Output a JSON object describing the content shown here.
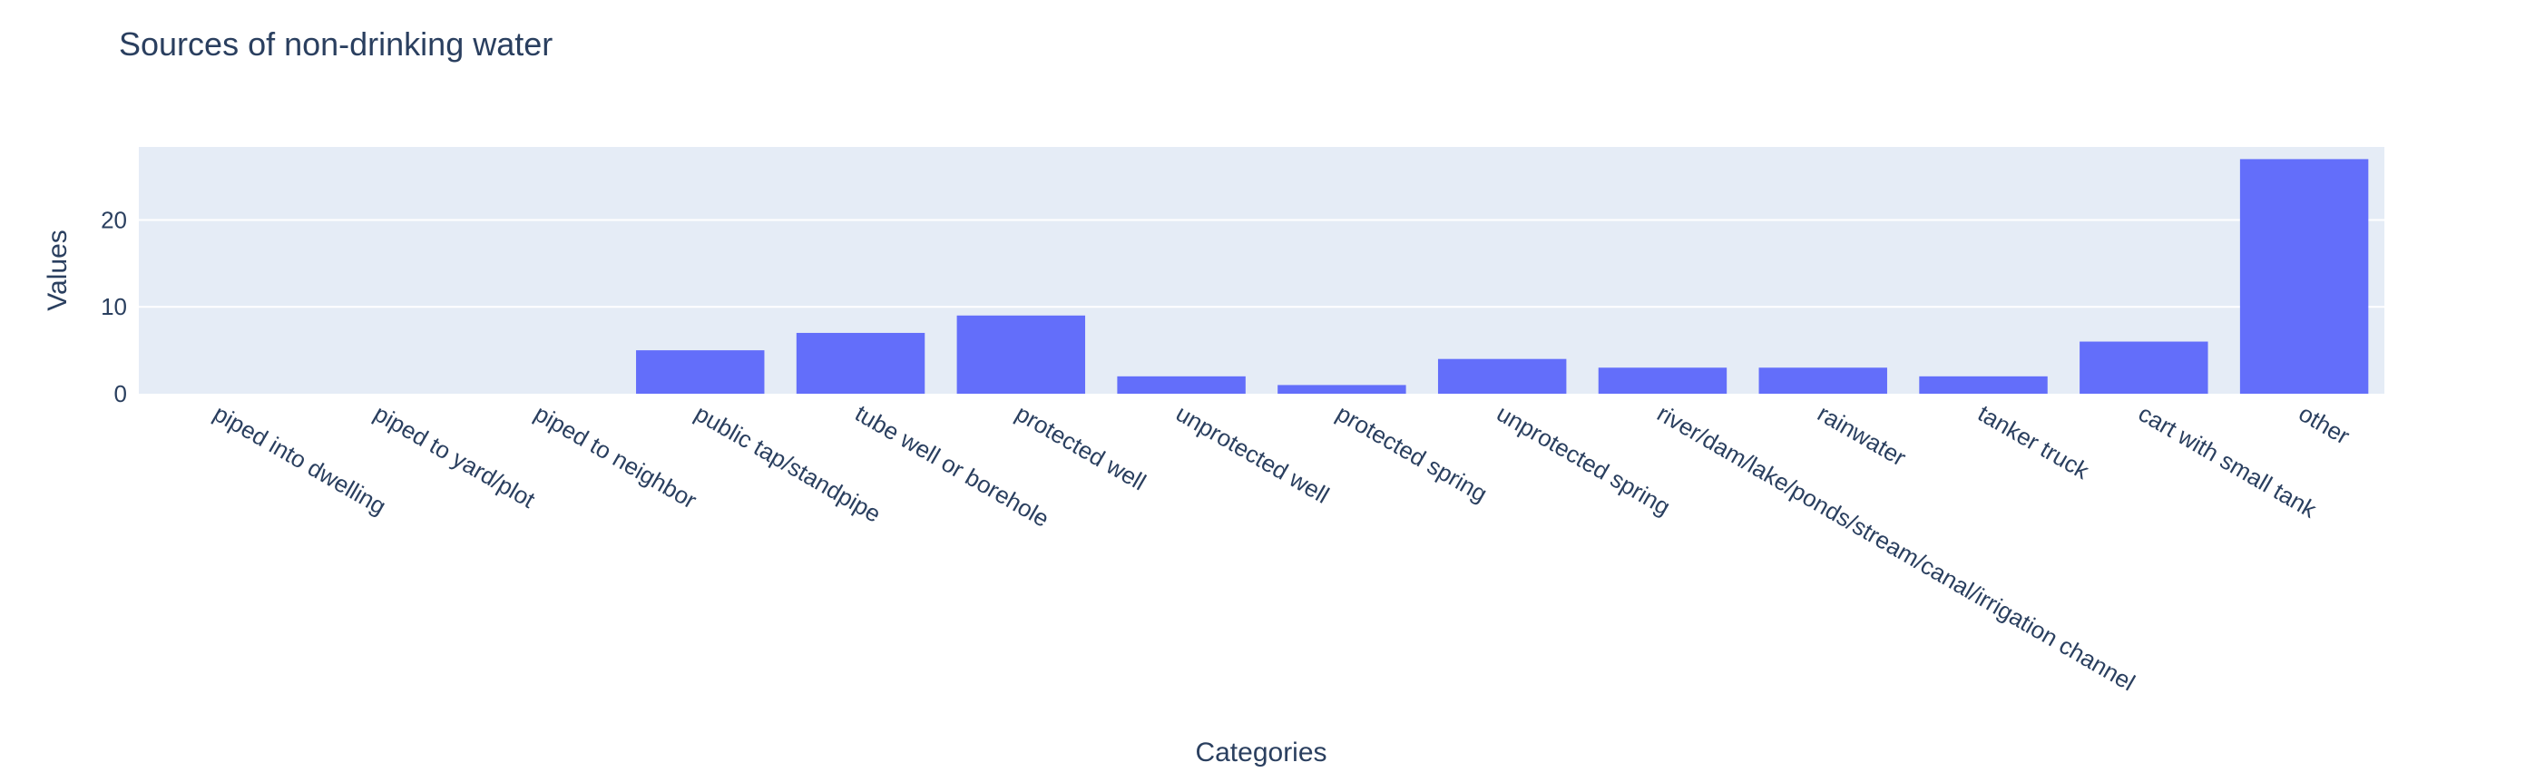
{
  "chart_data": {
    "type": "bar",
    "title": "Sources of non-drinking water",
    "xlabel": "Categories",
    "ylabel": "Values",
    "categories": [
      "piped into dwelling",
      "piped to yard/plot",
      "piped to neighbor",
      "public tap/standpipe",
      "tube well or borehole",
      "protected well",
      "unprotected well",
      "protected spring",
      "unprotected spring",
      "river/dam/lake/ponds/stream/canal/irrigation channel",
      "rainwater",
      "tanker truck",
      "cart with small tank",
      "other"
    ],
    "values": [
      0,
      0,
      0,
      5,
      7,
      9,
      2,
      1,
      4,
      3,
      3,
      2,
      6,
      27
    ],
    "ylim": [
      0,
      28.4
    ],
    "yticks": [
      0,
      10,
      20
    ],
    "grid": true,
    "legend": "none",
    "colors": {
      "bar": "#636efa",
      "plot_bg": "#e5ecf6",
      "grid": "#ffffff",
      "text": "#2a3f5f"
    }
  }
}
